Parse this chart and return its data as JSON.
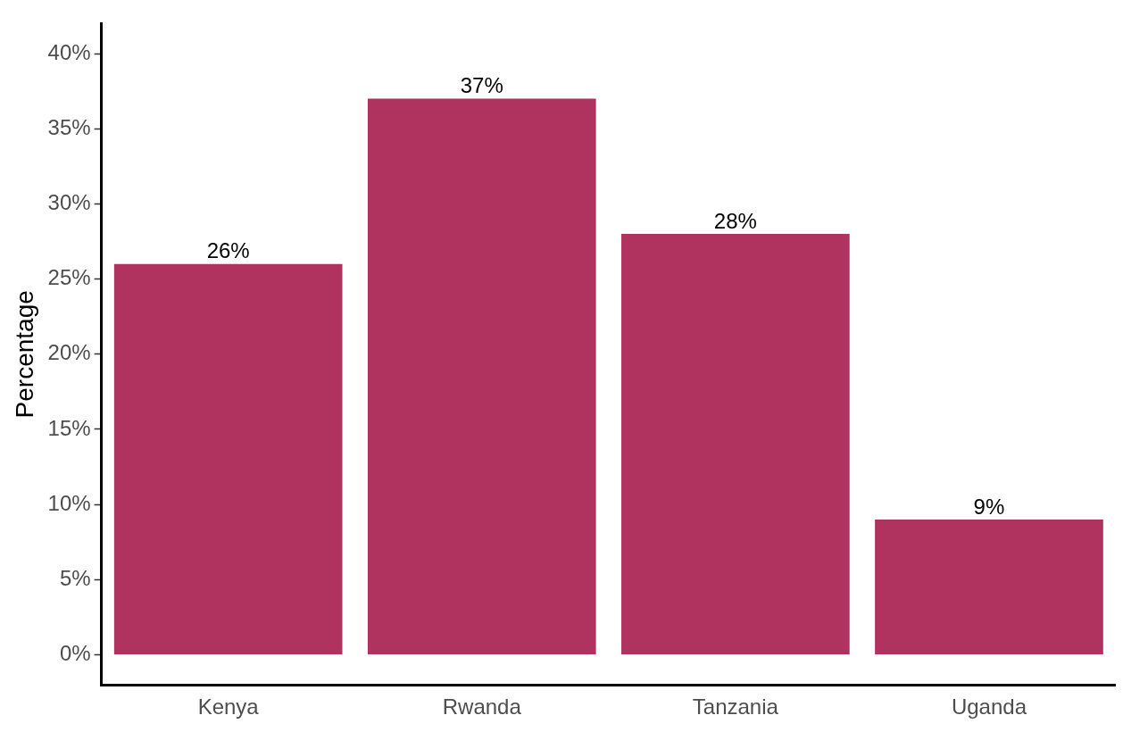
{
  "chart_data": {
    "type": "bar",
    "ylabel": "Percentage",
    "categories": [
      "Kenya",
      "Rwanda",
      "Tanzania",
      "Uganda"
    ],
    "values": [
      26,
      37,
      28,
      9
    ],
    "value_labels": [
      "26%",
      "37%",
      "28%",
      "9%"
    ],
    "color": "#b0325f",
    "ylim": [
      -2,
      42
    ],
    "yticks": [
      {
        "value": 0,
        "label": "0%"
      },
      {
        "value": 5,
        "label": "5%"
      },
      {
        "value": 10,
        "label": "10%"
      },
      {
        "value": 15,
        "label": "15%"
      },
      {
        "value": 20,
        "label": "20%"
      },
      {
        "value": 25,
        "label": "25%"
      },
      {
        "value": 30,
        "label": "30%"
      },
      {
        "value": 35,
        "label": "35%"
      },
      {
        "value": 40,
        "label": "40%"
      }
    ],
    "grid": false,
    "legend": false
  }
}
